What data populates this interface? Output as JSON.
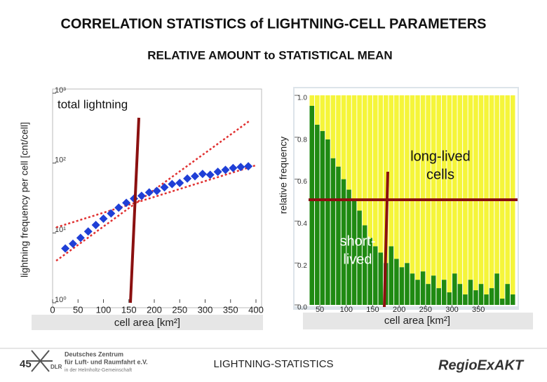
{
  "slide": {
    "title": "CORRELATION STATISTICS of LIGHTNING-CELL PARAMETERS",
    "subtitle": "RELATIVE AMOUNT to STATISTICAL MEAN",
    "page_number": "45",
    "footer": "LIGHTNING-STATISTICS",
    "logo_dlr": {
      "mark": "DLR",
      "lines": [
        "Deutsches Zentrum",
        "für Luft- und Raumfahrt e.V.",
        "in der Helmholtz-Gemeinschaft"
      ]
    },
    "logo_regio": "RegioExAKT"
  },
  "chart_data": [
    {
      "type": "scatter",
      "annotation": "total lightning",
      "x_label": "cell area [km²]",
      "y_label": "lightning frequency per cell [cnt/cell]",
      "log_y": true,
      "color": "#1f3fd6",
      "x": [
        25,
        40,
        55,
        70,
        85,
        100,
        115,
        130,
        145,
        160,
        175,
        190,
        205,
        220,
        235,
        250,
        265,
        280,
        295,
        310,
        325,
        340,
        355,
        370,
        385
      ],
      "y": [
        6,
        7,
        8.5,
        10.5,
        13,
        16,
        19,
        23,
        27,
        31,
        34,
        38,
        40,
        45,
        50,
        52,
        60,
        65,
        70,
        68,
        75,
        80,
        85,
        88,
        90
      ],
      "fit_color": "#e03030",
      "fit_lines": [
        {
          "x": [
            7,
            387
          ],
          "y": [
            4,
            400
          ]
        },
        {
          "x": [
            7,
            400
          ],
          "y": [
            12,
            93
          ]
        }
      ],
      "xlim": [
        0,
        400
      ],
      "xticks": [
        0,
        50,
        100,
        150,
        200,
        250,
        300,
        350,
        400
      ],
      "ylim": [
        1,
        1000
      ],
      "yticks": [
        {
          "value": 1,
          "label": "10⁰"
        },
        {
          "value": 10,
          "label": "10¹"
        },
        {
          "value": 100,
          "label": "10²"
        },
        {
          "value": 1000,
          "label": "10³"
        }
      ]
    },
    {
      "type": "stacked_bar",
      "x_label": "cell area [km²]",
      "y_label": "relative frequency",
      "annotations": {
        "long": [
          "long-lived",
          "cells"
        ],
        "short": [
          "short-",
          "lived"
        ]
      },
      "x": [
        35,
        45,
        55,
        65,
        75,
        85,
        95,
        105,
        115,
        125,
        135,
        145,
        155,
        165,
        175,
        185,
        195,
        205,
        215,
        225,
        235,
        245,
        255,
        265,
        275,
        285,
        295,
        305,
        315,
        325,
        335,
        345,
        355,
        365,
        375,
        385,
        395,
        405,
        415
      ],
      "bar_width": 10,
      "series": [
        {
          "color": "#1f8a12",
          "values": [
            0.95,
            0.86,
            0.83,
            0.79,
            0.7,
            0.66,
            0.6,
            0.55,
            0.5,
            0.45,
            0.38,
            0.32,
            0.28,
            0.25,
            0.2,
            0.28,
            0.22,
            0.18,
            0.2,
            0.15,
            0.12,
            0.16,
            0.1,
            0.14,
            0.08,
            0.12,
            0.06,
            0.15,
            0.1,
            0.05,
            0.12,
            0.07,
            0.1,
            0.05,
            0.08,
            0.15,
            0.03,
            0.1,
            0.05
          ]
        },
        {
          "color": "#f5f53a",
          "values": [
            0.05,
            0.14,
            0.17,
            0.21,
            0.3,
            0.34,
            0.4,
            0.45,
            0.5,
            0.55,
            0.62,
            0.68,
            0.72,
            0.75,
            0.8,
            0.72,
            0.78,
            0.82,
            0.8,
            0.85,
            0.88,
            0.84,
            0.9,
            0.86,
            0.92,
            0.88,
            0.94,
            0.85,
            0.9,
            0.95,
            0.88,
            0.93,
            0.9,
            0.95,
            0.92,
            0.85,
            0.97,
            0.9,
            0.95
          ]
        }
      ],
      "xlim": [
        30,
        420
      ],
      "xticks": [
        50,
        100,
        150,
        200,
        250,
        300,
        350
      ],
      "ylim": [
        0,
        1
      ],
      "yticks": [
        {
          "value": 0,
          "label": "0.0"
        },
        0.2,
        0.4,
        0.6,
        0.8,
        {
          "value": 1,
          "label": "1.0"
        }
      ]
    }
  ]
}
